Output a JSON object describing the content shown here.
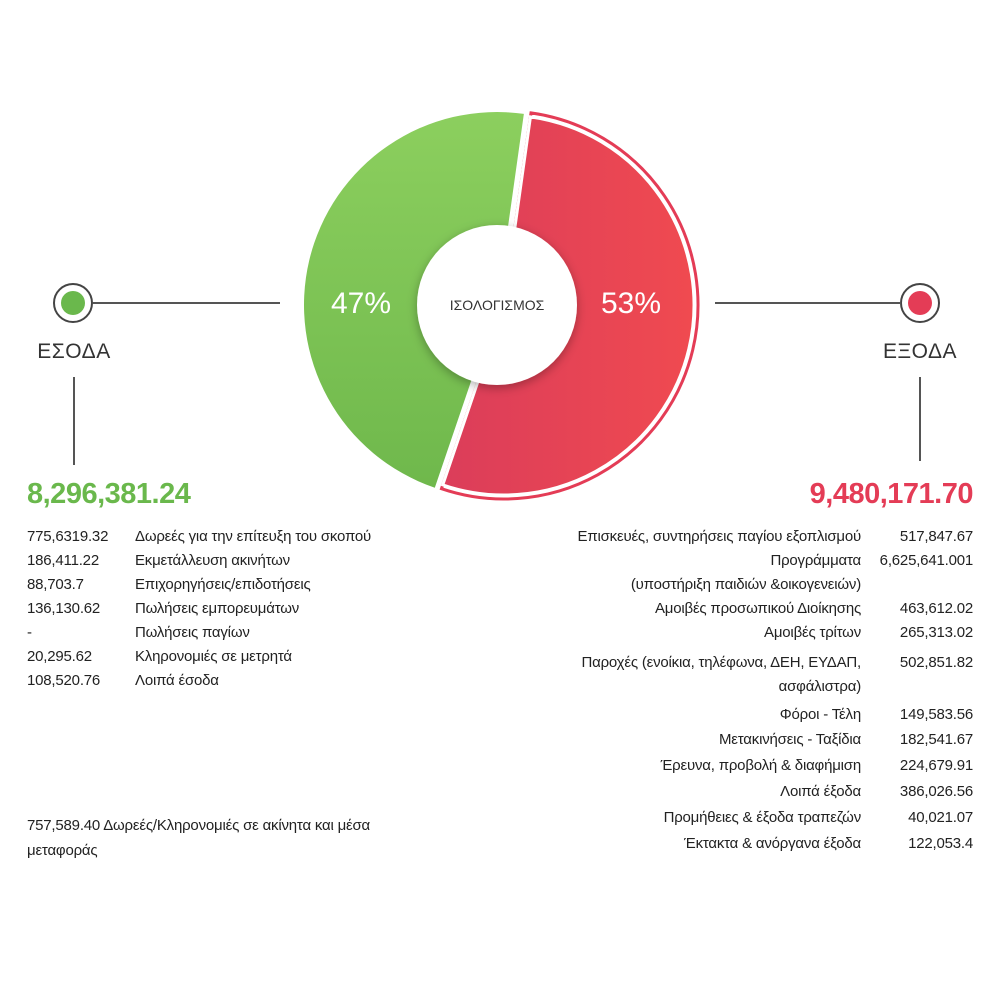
{
  "chart_data": {
    "type": "pie",
    "style": "donut",
    "center_label": "ΙΣΟΛΟΓΙΣΜΟΣ",
    "slices": [
      {
        "name": "ΕΣΟΔΑ",
        "value": 47,
        "label": "47%",
        "color": "#7cc35a"
      },
      {
        "name": "ΕΞΟΔΑ",
        "value": 53,
        "label": "53%",
        "color": "#e84455"
      }
    ]
  },
  "income": {
    "title": "ΕΣΟΔΑ",
    "color": "#6ab84c",
    "total": "8,296,381.24",
    "items": [
      {
        "value": "775,6319.32",
        "label": "Δωρεές για την επίτευξη του σκοπού"
      },
      {
        "value": "186,411.22",
        "label": "Εκμετάλλευση ακινήτων"
      },
      {
        "value": "88,703.7",
        "label": "Επιχορηγήσεις/επιδοτήσεις"
      },
      {
        "value": "136,130.62",
        "label": "Πωλήσεις εμπορευμάτων"
      },
      {
        "value": "-",
        "label": "Πωλήσεις παγίων"
      },
      {
        "value": "20,295.62",
        "label": "Κληρονομιές σε μετρητά"
      },
      {
        "value": "108,520.76",
        "label": "Λοιπά έσοδα"
      }
    ],
    "note": "757,589.40 Δωρεές/Κληρονομιές σε ακίνητα και μέσα μεταφοράς"
  },
  "expenses": {
    "title": "ΕΞΟΔΑ",
    "color": "#e43c56",
    "total": "9,480,171.70",
    "items": [
      {
        "label": "Επισκευές, συντηρήσεις παγίου εξοπλισμού",
        "value": "517,847.67"
      },
      {
        "label": "Προγράμματα",
        "value": "6,625,641.001"
      },
      {
        "label": "(υποστήριξη παιδιών &οικογενειών)",
        "value": ""
      },
      {
        "label": "Αμοιβές προσωπικού Διοίκησης",
        "value": "463,612.02"
      },
      {
        "label": "Αμοιβές τρίτων",
        "value": "265,313.02"
      },
      {
        "label": "Παροχές (ενοίκια, τηλέφωνα, ΔΕΗ, ΕΥΔΑΠ,",
        "value": "502,851.82"
      },
      {
        "label": "ασφάλιστρα)",
        "value": ""
      },
      {
        "label": "Φόροι - Τέλη",
        "value": "149,583.56"
      },
      {
        "label": "Μετακινήσεις - Ταξίδια",
        "value": "182,541.67"
      },
      {
        "label": "Έρευνα, προβολή & διαφήμιση",
        "value": "224,679.91"
      },
      {
        "label": "Λοιπά έξοδα",
        "value": "386,026.56"
      },
      {
        "label": "Προμήθειες & έξοδα τραπεζών",
        "value": "40,021.07"
      },
      {
        "label": "Έκτακτα & ανόργανα έξοδα",
        "value": "122,053.4"
      }
    ]
  }
}
